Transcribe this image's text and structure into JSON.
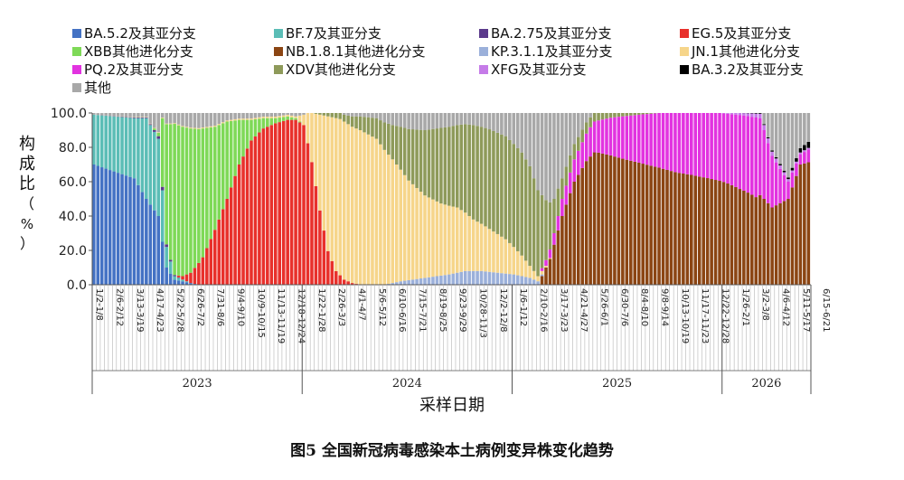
{
  "caption": "图5 全国新冠病毒感染本土病例变异株变化趋势",
  "chart_data": {
    "type": "area",
    "stacked": true,
    "xlabel": "采样日期",
    "ylabel_chars": [
      "构",
      "成",
      "比",
      "（",
      "%",
      "）"
    ],
    "ylim": [
      0,
      100
    ],
    "yticks": [
      "0.0",
      "20.0",
      "40.0",
      "60.0",
      "80.0",
      "100.0"
    ],
    "legend_position": "top",
    "x_period_count": 178,
    "xtick_labels": [
      "1/2-1/8",
      "2/6-2/12",
      "3/13-3/19",
      "4/17-4/23",
      "5/22-5/28",
      "6/26-7/2",
      "7/31-8/6",
      "9/4-9/10",
      "10/9-10/15",
      "11/13-11/19",
      "12/18-12/24",
      "1/22-1/28",
      "2/26-3/3",
      "4/1-4/7",
      "5/6-5/12",
      "6/10-6/16",
      "7/15-7/21",
      "8/19-8/25",
      "9/23-9/29",
      "10/28-11/3",
      "12/2-12/8",
      "1/6-1/12",
      "2/10-2/16",
      "3/17-3/23",
      "4/21-4/27",
      "5/26-6/1",
      "6/30-7/6",
      "8/4-8/10",
      "9/8-9/14",
      "10/13-10/19",
      "11/17-11/23",
      "12/22-12/28",
      "1/26-2/1",
      "3/2-3/8",
      "4/6-4/12",
      "5/11-5/17",
      "6/15-6/21"
    ],
    "years": [
      {
        "label": "2023",
        "start": 0,
        "end": 52
      },
      {
        "label": "2024",
        "start": 52,
        "end": 104
      },
      {
        "label": "2025",
        "start": 104,
        "end": 156
      },
      {
        "label": "2026",
        "start": 156,
        "end": 178
      }
    ],
    "series": [
      {
        "name": "BA.5.2及其亚分支",
        "color": "#4472C4",
        "keys": [
          [
            0,
            70
          ],
          [
            10,
            62
          ],
          [
            13,
            50
          ],
          [
            16,
            40
          ],
          [
            17,
            25
          ],
          [
            18,
            10
          ],
          [
            20,
            3
          ],
          [
            26,
            0
          ],
          [
            178,
            0
          ]
        ]
      },
      {
        "name": "BF.7及其亚分支",
        "color": "#5BBDB6",
        "keys": [
          [
            0,
            29
          ],
          [
            10,
            35
          ],
          [
            13,
            47
          ],
          [
            16,
            45
          ],
          [
            17,
            30
          ],
          [
            18,
            12
          ],
          [
            20,
            2
          ],
          [
            24,
            0
          ],
          [
            178,
            0
          ]
        ]
      },
      {
        "name": "BA.2.75及其亚分支",
        "color": "#5B3A8C",
        "keys": [
          [
            0,
            0
          ],
          [
            14,
            0.5
          ],
          [
            17,
            2
          ],
          [
            19,
            1
          ],
          [
            22,
            0
          ],
          [
            178,
            0
          ]
        ]
      },
      {
        "name": "EG.5及其亚分支",
        "color": "#E8302B",
        "keys": [
          [
            0,
            0
          ],
          [
            20,
            0
          ],
          [
            22,
            2
          ],
          [
            24,
            6
          ],
          [
            27,
            16
          ],
          [
            30,
            32
          ],
          [
            33,
            50
          ],
          [
            36,
            70
          ],
          [
            39,
            84
          ],
          [
            42,
            91
          ],
          [
            45,
            94
          ],
          [
            48,
            96
          ],
          [
            50,
            96
          ],
          [
            52,
            93
          ],
          [
            54,
            75
          ],
          [
            56,
            45
          ],
          [
            58,
            20
          ],
          [
            60,
            8
          ],
          [
            62,
            3
          ],
          [
            64,
            1
          ],
          [
            66,
            0
          ],
          [
            178,
            0
          ]
        ]
      },
      {
        "name": "XBB其他进化分支",
        "color": "#7ED957",
        "keys": [
          [
            0,
            0
          ],
          [
            14,
            0
          ],
          [
            16,
            2
          ],
          [
            17,
            40
          ],
          [
            18,
            70
          ],
          [
            20,
            88
          ],
          [
            22,
            87
          ],
          [
            24,
            84
          ],
          [
            27,
            75
          ],
          [
            30,
            60
          ],
          [
            33,
            45
          ],
          [
            36,
            26
          ],
          [
            39,
            12
          ],
          [
            42,
            6
          ],
          [
            45,
            3
          ],
          [
            48,
            2
          ],
          [
            50,
            1
          ],
          [
            52,
            0
          ],
          [
            178,
            0
          ]
        ]
      },
      {
        "name": "NB.1.8.1其他进化分支",
        "color": "#8B4513",
        "keys": [
          [
            0,
            0
          ],
          [
            110,
            0
          ],
          [
            113,
            15
          ],
          [
            116,
            40
          ],
          [
            119,
            60
          ],
          [
            122,
            72
          ],
          [
            125,
            80
          ],
          [
            130,
            84
          ],
          [
            135,
            88
          ],
          [
            140,
            90
          ],
          [
            145,
            92
          ],
          [
            148,
            94
          ],
          [
            152,
            95
          ],
          [
            156,
            93
          ],
          [
            160,
            75
          ],
          [
            164,
            55
          ],
          [
            168,
            45
          ],
          [
            172,
            50
          ],
          [
            175,
            70
          ],
          [
            178,
            72
          ]
        ]
      },
      {
        "name": "KP.3.1.1及其亚分支",
        "color": "#9BB0DA",
        "keys": [
          [
            0,
            0
          ],
          [
            72,
            0
          ],
          [
            76,
            2
          ],
          [
            82,
            4
          ],
          [
            88,
            6
          ],
          [
            92,
            8
          ],
          [
            96,
            8
          ],
          [
            100,
            7
          ],
          [
            104,
            6
          ],
          [
            108,
            4
          ],
          [
            110,
            2
          ],
          [
            112,
            0
          ],
          [
            178,
            0
          ]
        ]
      },
      {
        "name": "JN.1其他进化分支",
        "color": "#F6D58A",
        "keys": [
          [
            0,
            0
          ],
          [
            50,
            1
          ],
          [
            52,
            6
          ],
          [
            54,
            30
          ],
          [
            56,
            58
          ],
          [
            58,
            80
          ],
          [
            60,
            90
          ],
          [
            62,
            92
          ],
          [
            66,
            90
          ],
          [
            70,
            85
          ],
          [
            74,
            72
          ],
          [
            78,
            58
          ],
          [
            82,
            48
          ],
          [
            86,
            42
          ],
          [
            90,
            38
          ],
          [
            94,
            30
          ],
          [
            98,
            25
          ],
          [
            102,
            20
          ],
          [
            104,
            16
          ],
          [
            106,
            12
          ],
          [
            108,
            7
          ],
          [
            110,
            3
          ],
          [
            112,
            1
          ],
          [
            114,
            0
          ],
          [
            178,
            0
          ]
        ]
      },
      {
        "name": "PQ.2及其亚分支",
        "color": "#E233E0",
        "keys": [
          [
            0,
            0
          ],
          [
            110,
            0
          ],
          [
            113,
            5
          ],
          [
            116,
            10
          ],
          [
            120,
            14
          ],
          [
            124,
            18
          ],
          [
            128,
            24
          ],
          [
            132,
            30
          ],
          [
            136,
            36
          ],
          [
            140,
            42
          ],
          [
            144,
            48
          ],
          [
            148,
            53
          ],
          [
            152,
            58
          ],
          [
            156,
            62
          ],
          [
            160,
            58
          ],
          [
            164,
            50
          ],
          [
            167,
            35
          ],
          [
            170,
            20
          ],
          [
            172,
            10
          ],
          [
            175,
            6
          ],
          [
            178,
            8
          ]
        ]
      },
      {
        "name": "XDV其他进化分支",
        "color": "#8E9A5A",
        "keys": [
          [
            0,
            0
          ],
          [
            54,
            0
          ],
          [
            58,
            2
          ],
          [
            62,
            4
          ],
          [
            66,
            8
          ],
          [
            70,
            12
          ],
          [
            74,
            20
          ],
          [
            78,
            30
          ],
          [
            82,
            38
          ],
          [
            86,
            44
          ],
          [
            90,
            48
          ],
          [
            94,
            55
          ],
          [
            98,
            58
          ],
          [
            102,
            60
          ],
          [
            104,
            60
          ],
          [
            106,
            60
          ],
          [
            108,
            58
          ],
          [
            110,
            50
          ],
          [
            112,
            35
          ],
          [
            114,
            20
          ],
          [
            116,
            12
          ],
          [
            120,
            8
          ],
          [
            124,
            5
          ],
          [
            128,
            3
          ],
          [
            132,
            2
          ],
          [
            136,
            1
          ],
          [
            140,
            0
          ],
          [
            178,
            0
          ]
        ]
      },
      {
        "name": "XFG及其亚分支",
        "color": "#C57BE8",
        "keys": [
          [
            0,
            0
          ],
          [
            155,
            0
          ],
          [
            158,
            1
          ],
          [
            162,
            2
          ],
          [
            166,
            3
          ],
          [
            170,
            2
          ],
          [
            174,
            1
          ],
          [
            178,
            1
          ]
        ]
      },
      {
        "name": "BA.3.2及其亚分支",
        "color": "#000000",
        "keys": [
          [
            0,
            0
          ],
          [
            160,
            0
          ],
          [
            166,
            0.5
          ],
          [
            172,
            1
          ],
          [
            176,
            3
          ],
          [
            178,
            4
          ]
        ]
      },
      {
        "name": "其他",
        "color": "#A8A8A8",
        "keys": "remainder"
      }
    ]
  }
}
